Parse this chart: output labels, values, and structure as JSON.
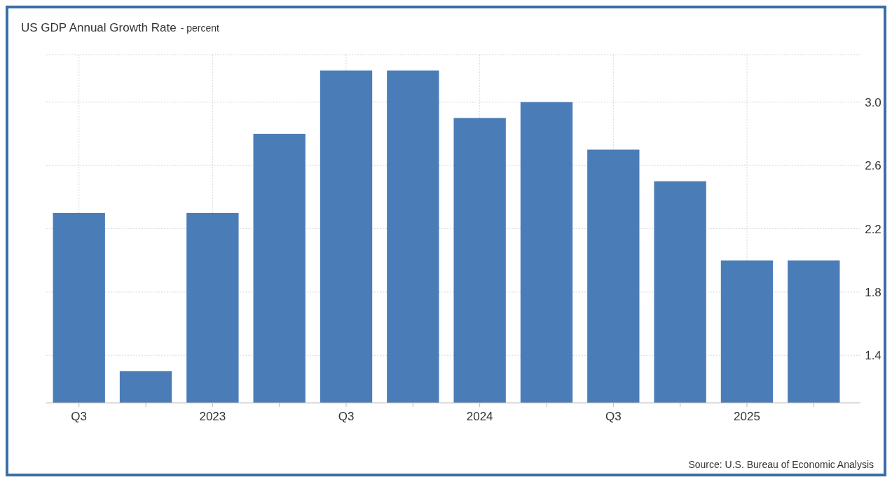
{
  "chart_data": {
    "type": "bar",
    "title": "US GDP Annual Growth Rate",
    "subtitle": "- percent",
    "categories": [
      "Q3",
      null,
      "2023",
      null,
      "Q3",
      null,
      "2024",
      null,
      "Q3",
      null,
      "2025",
      null
    ],
    "values": [
      2.3,
      1.3,
      2.3,
      2.8,
      3.2,
      3.2,
      2.9,
      3.0,
      2.7,
      2.5,
      2.0,
      2.0
    ],
    "color": "#4a7db8",
    "ylim": [
      1.1,
      3.3
    ],
    "yticks": [
      1.4,
      1.8,
      2.2,
      {
        "value": 2.6,
        "label": "2.6"
      },
      {
        "value": 3,
        "label": "3.0"
      }
    ],
    "grid": true,
    "annotations": [
      "Source: U.S. Bureau of Economic Analysis"
    ]
  }
}
